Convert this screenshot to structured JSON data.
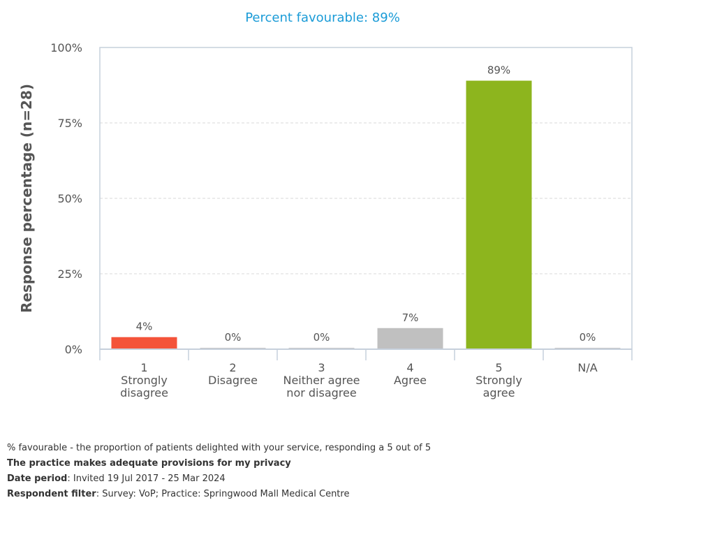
{
  "chart_data": {
    "type": "bar",
    "title": "Percent favourable: 89%",
    "ylabel": "Response percentage (n=28)",
    "ylim": [
      0,
      100
    ],
    "yticks": [
      "0%",
      "25%",
      "50%",
      "75%",
      "100%"
    ],
    "ytick_values": [
      0,
      25,
      50,
      75,
      100
    ],
    "grid": true,
    "categories": [
      {
        "num": "1",
        "label": [
          "Strongly",
          "disagree"
        ]
      },
      {
        "num": "2",
        "label": [
          "Disagree"
        ]
      },
      {
        "num": "3",
        "label": [
          "Neither agree",
          "nor disagree"
        ]
      },
      {
        "num": "4",
        "label": [
          "Agree"
        ]
      },
      {
        "num": "5",
        "label": [
          "Strongly",
          "agree"
        ]
      },
      {
        "num": "N/A",
        "label": []
      }
    ],
    "values": [
      4,
      0,
      0,
      7,
      89,
      0
    ],
    "value_labels": [
      "4%",
      "0%",
      "0%",
      "7%",
      "89%",
      "0%"
    ],
    "colors": [
      "#f4533a",
      "#c8c8c8",
      "#c8c8c8",
      "#c0c0c0",
      "#8db51e",
      "#c8c8c8"
    ],
    "title_color": "#1a9bd7"
  },
  "footer": {
    "note": "% favourable - the proportion of patients delighted with your service, responding a 5 out of 5",
    "question": "The practice makes adequate provisions for my privacy",
    "date_label": "Date period",
    "date_value": ": Invited 19 Jul 2017 - 25 Mar 2024",
    "filter_label": "Respondent filter",
    "filter_value": ": Survey: VoP; Practice: Springwood Mall Medical Centre"
  }
}
